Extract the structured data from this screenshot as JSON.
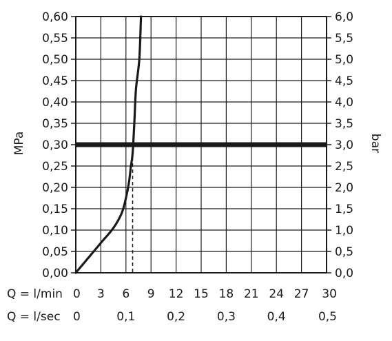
{
  "chart_data": {
    "type": "line",
    "ylabel_left": "MPa",
    "ylabel_right": "bar",
    "y_left_ticks": [
      "0,00",
      "0,05",
      "0,10",
      "0,15",
      "0,20",
      "0,25",
      "0,30",
      "0,35",
      "0,40",
      "0,45",
      "0,50",
      "0,55",
      "0,60"
    ],
    "y_right_ticks": [
      "0,0",
      "0,5",
      "1,0",
      "1,5",
      "2,0",
      "2,5",
      "3,0",
      "3,5",
      "4,0",
      "4,5",
      "5,0",
      "5,5",
      "6,0"
    ],
    "ylim": [
      0,
      0.6
    ],
    "xlim": [
      0,
      30
    ],
    "x_row1": {
      "label": "Q = l/min",
      "ticks": [
        {
          "value": 0,
          "text": "0"
        },
        {
          "value": 3,
          "text": "3"
        },
        {
          "value": 6,
          "text": "6"
        },
        {
          "value": 9,
          "text": "9"
        },
        {
          "value": 12,
          "text": "12"
        },
        {
          "value": 15,
          "text": "15"
        },
        {
          "value": 18,
          "text": "18"
        },
        {
          "value": 21,
          "text": "21"
        },
        {
          "value": 24,
          "text": "24"
        },
        {
          "value": 27,
          "text": "27"
        },
        {
          "value": 30,
          "text": "30"
        }
      ]
    },
    "x_row2": {
      "label": "Q = l/sec",
      "ticks": [
        {
          "value": 0,
          "text": "0"
        },
        {
          "value": 6,
          "text": "0,1"
        },
        {
          "value": 12,
          "text": "0,2"
        },
        {
          "value": 18,
          "text": "0,3"
        },
        {
          "value": 24,
          "text": "0,4"
        },
        {
          "value": 30,
          "text": "0,5"
        }
      ]
    },
    "grid": true,
    "series": [
      {
        "kind": "flow-curve",
        "x": [
          0,
          1.5,
          3,
          4.5,
          5.5,
          6.0,
          6.35,
          6.6,
          6.8,
          7.0,
          7.2,
          7.6,
          7.8
        ],
        "y": [
          0,
          0.035,
          0.07,
          0.105,
          0.14,
          0.175,
          0.21,
          0.25,
          0.28,
          0.35,
          0.43,
          0.5,
          0.6
        ]
      }
    ],
    "reference_line": {
      "y": 0.3
    },
    "drop_line": {
      "x": 6.8,
      "y_from": 0,
      "y_to": 0.3
    }
  }
}
